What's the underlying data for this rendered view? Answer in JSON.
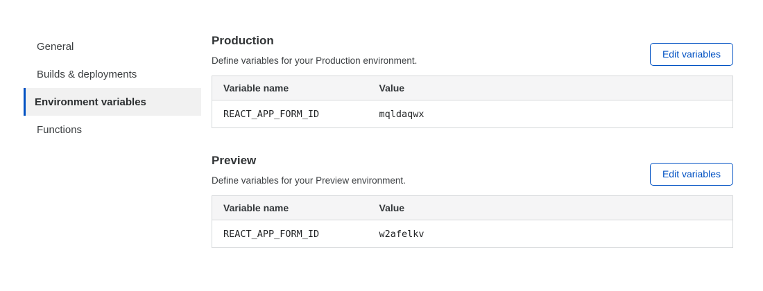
{
  "accent_color": "#0051c3",
  "selected_bg_color": "#f1f1f1",
  "sidebar": {
    "items": [
      {
        "label": "General",
        "selected": false
      },
      {
        "label": "Builds & deployments",
        "selected": false
      },
      {
        "label": "Environment variables",
        "selected": true
      },
      {
        "label": "Functions",
        "selected": false
      }
    ]
  },
  "sections": [
    {
      "title": "Production",
      "description": "Define variables for your Production environment.",
      "button_label": "Edit variables",
      "table": {
        "columns": [
          "Variable name",
          "Value"
        ],
        "rows": [
          {
            "name": "REACT_APP_FORM_ID",
            "value": "mqldaqwx"
          }
        ]
      }
    },
    {
      "title": "Preview",
      "description": "Define variables for your Preview environment.",
      "button_label": "Edit variables",
      "table": {
        "columns": [
          "Variable name",
          "Value"
        ],
        "rows": [
          {
            "name": "REACT_APP_FORM_ID",
            "value": "w2afelkv"
          }
        ]
      }
    }
  ]
}
